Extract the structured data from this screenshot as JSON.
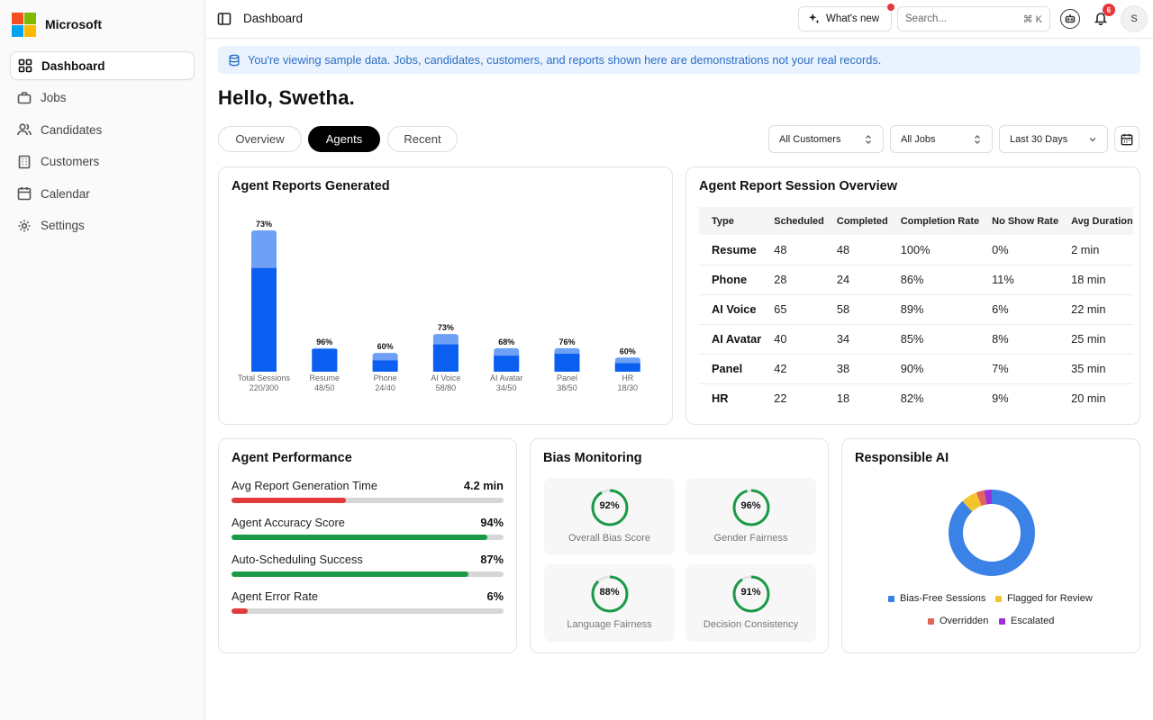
{
  "brand": {
    "name": "Microsoft"
  },
  "sidebar": {
    "items": [
      {
        "label": "Dashboard",
        "icon": "dashboard-icon",
        "active": true
      },
      {
        "label": "Jobs",
        "icon": "briefcase-icon",
        "active": false
      },
      {
        "label": "Candidates",
        "icon": "users-icon",
        "active": false
      },
      {
        "label": "Customers",
        "icon": "building-icon",
        "active": false
      },
      {
        "label": "Calendar",
        "icon": "calendar-icon",
        "active": false
      },
      {
        "label": "Settings",
        "icon": "gear-icon",
        "active": false
      }
    ]
  },
  "topbar": {
    "title": "Dashboard",
    "whats_new": "What's new",
    "search_placeholder": "Search...",
    "search_shortcut": "⌘ K",
    "notifications_count": "6",
    "avatar_initial": "S"
  },
  "banner": {
    "text": "You're viewing sample data. Jobs, candidates, customers, and reports shown here are demonstrations not your real records."
  },
  "greeting": "Hello, Swetha.",
  "tabs": [
    {
      "label": "Overview",
      "active": false
    },
    {
      "label": "Agents",
      "active": true
    },
    {
      "label": "Recent",
      "active": false
    }
  ],
  "filters": {
    "customers": "All Customers",
    "jobs": "All Jobs",
    "range": "Last 30 Days"
  },
  "reports_card": {
    "title": "Agent Reports Generated"
  },
  "chart_data": {
    "type": "bar",
    "stacked": true,
    "categories": [
      "Total Sessions",
      "Resume",
      "Phone",
      "AI Voice",
      "AI Avatar",
      "Panel",
      "HR"
    ],
    "sublabels": [
      "220/300",
      "48/50",
      "24/40",
      "58/80",
      "34/50",
      "38/50",
      "18/30"
    ],
    "completed": [
      220,
      48,
      24,
      58,
      34,
      38,
      18
    ],
    "total": [
      300,
      50,
      40,
      80,
      50,
      50,
      30
    ],
    "percent_labels": [
      "73%",
      "96%",
      "60%",
      "73%",
      "68%",
      "76%",
      "60%"
    ],
    "colors": {
      "completed": "#0a5ff0",
      "remaining": "#6ea1f6"
    }
  },
  "session_card": {
    "title": "Agent Report Session Overview",
    "columns": [
      "Type",
      "Scheduled",
      "Completed",
      "Completion Rate",
      "No Show Rate",
      "Avg Duration"
    ],
    "rows": [
      [
        "Resume",
        "48",
        "48",
        "100%",
        "0%",
        "2 min"
      ],
      [
        "Phone",
        "28",
        "24",
        "86%",
        "11%",
        "18 min"
      ],
      [
        "AI Voice",
        "65",
        "58",
        "89%",
        "6%",
        "22 min"
      ],
      [
        "AI Avatar",
        "40",
        "34",
        "85%",
        "8%",
        "25 min"
      ],
      [
        "Panel",
        "42",
        "38",
        "90%",
        "7%",
        "35 min"
      ],
      [
        "HR",
        "22",
        "18",
        "82%",
        "9%",
        "20 min"
      ]
    ]
  },
  "performance": {
    "title": "Agent Performance",
    "metrics": [
      {
        "label": "Avg Report Generation Time",
        "value": "4.2 min",
        "fill": 0.42,
        "color": "#e23b3b"
      },
      {
        "label": "Agent Accuracy Score",
        "value": "94%",
        "fill": 0.94,
        "color": "#1a9a46"
      },
      {
        "label": "Auto-Scheduling Success",
        "value": "87%",
        "fill": 0.87,
        "color": "#1a9a46"
      },
      {
        "label": "Agent Error Rate",
        "value": "6%",
        "fill": 0.06,
        "color": "#e23b3b"
      }
    ]
  },
  "bias": {
    "title": "Bias Monitoring",
    "tiles": [
      {
        "pct": "92%",
        "value": 0.92,
        "label": "Overall Bias Score"
      },
      {
        "pct": "96%",
        "value": 0.96,
        "label": "Gender Fairness"
      },
      {
        "pct": "88%",
        "value": 0.88,
        "label": "Language Fairness"
      },
      {
        "pct": "91%",
        "value": 0.91,
        "label": "Decision Consistency"
      }
    ],
    "ring_color": "#1a9a46"
  },
  "responsible": {
    "title": "Responsible AI",
    "slices": [
      {
        "name": "Bias-Free Sessions",
        "value": 0.88,
        "color": "#3a82e6"
      },
      {
        "name": "Flagged for Review",
        "value": 0.06,
        "color": "#f4c430"
      },
      {
        "name": "Overridden",
        "value": 0.03,
        "color": "#e0655a"
      },
      {
        "name": "Escalated",
        "value": 0.03,
        "color": "#9b30d9"
      }
    ]
  }
}
